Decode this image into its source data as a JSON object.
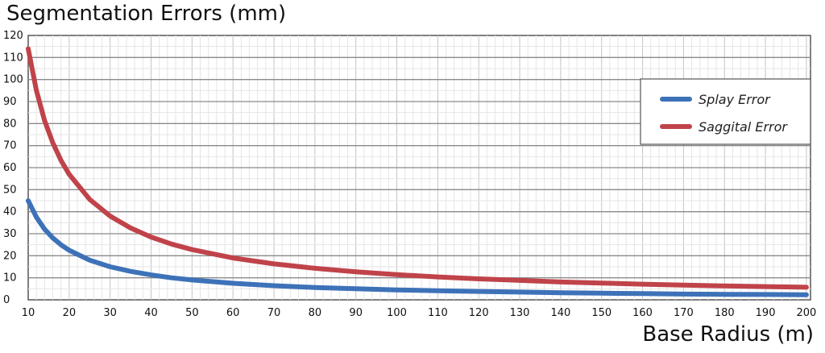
{
  "chart_data": {
    "type": "line",
    "title": "Segmentation Errors (mm)",
    "xlabel": "Base Radius (m)",
    "ylabel": "",
    "xlim": [
      10,
      201
    ],
    "ylim": [
      0,
      120
    ],
    "xticks": [
      10,
      20,
      30,
      40,
      50,
      60,
      70,
      80,
      90,
      100,
      110,
      120,
      130,
      140,
      150,
      160,
      170,
      180,
      190,
      200
    ],
    "yticks": [
      0,
      10,
      20,
      30,
      40,
      50,
      60,
      70,
      80,
      90,
      100,
      110,
      120
    ],
    "grid": true,
    "legend_position": "top-right",
    "series": [
      {
        "name": "Splay Error",
        "color": "#3d72b8",
        "x": [
          10,
          12,
          14,
          16,
          18,
          20,
          25,
          30,
          35,
          40,
          45,
          50,
          60,
          70,
          80,
          90,
          100,
          110,
          120,
          130,
          140,
          150,
          160,
          170,
          180,
          190,
          200
        ],
        "values": [
          45,
          37.5,
          32.1,
          28.1,
          25,
          22.5,
          18,
          15,
          12.9,
          11.3,
          10,
          9,
          7.5,
          6.4,
          5.6,
          5,
          4.5,
          4.1,
          3.8,
          3.5,
          3.2,
          3,
          2.8,
          2.6,
          2.5,
          2.4,
          2.3
        ]
      },
      {
        "name": "Saggital Error",
        "color": "#c0434a",
        "x": [
          10,
          12,
          14,
          16,
          18,
          20,
          25,
          30,
          35,
          40,
          45,
          50,
          60,
          70,
          80,
          90,
          100,
          110,
          120,
          130,
          140,
          150,
          160,
          170,
          180,
          190,
          200
        ],
        "values": [
          114,
          95,
          81.4,
          71.3,
          63.3,
          57,
          45.6,
          38,
          32.6,
          28.5,
          25.3,
          22.8,
          19,
          16.3,
          14.3,
          12.7,
          11.4,
          10.4,
          9.5,
          8.8,
          8.1,
          7.6,
          7.1,
          6.7,
          6.3,
          6,
          5.7
        ]
      }
    ]
  }
}
